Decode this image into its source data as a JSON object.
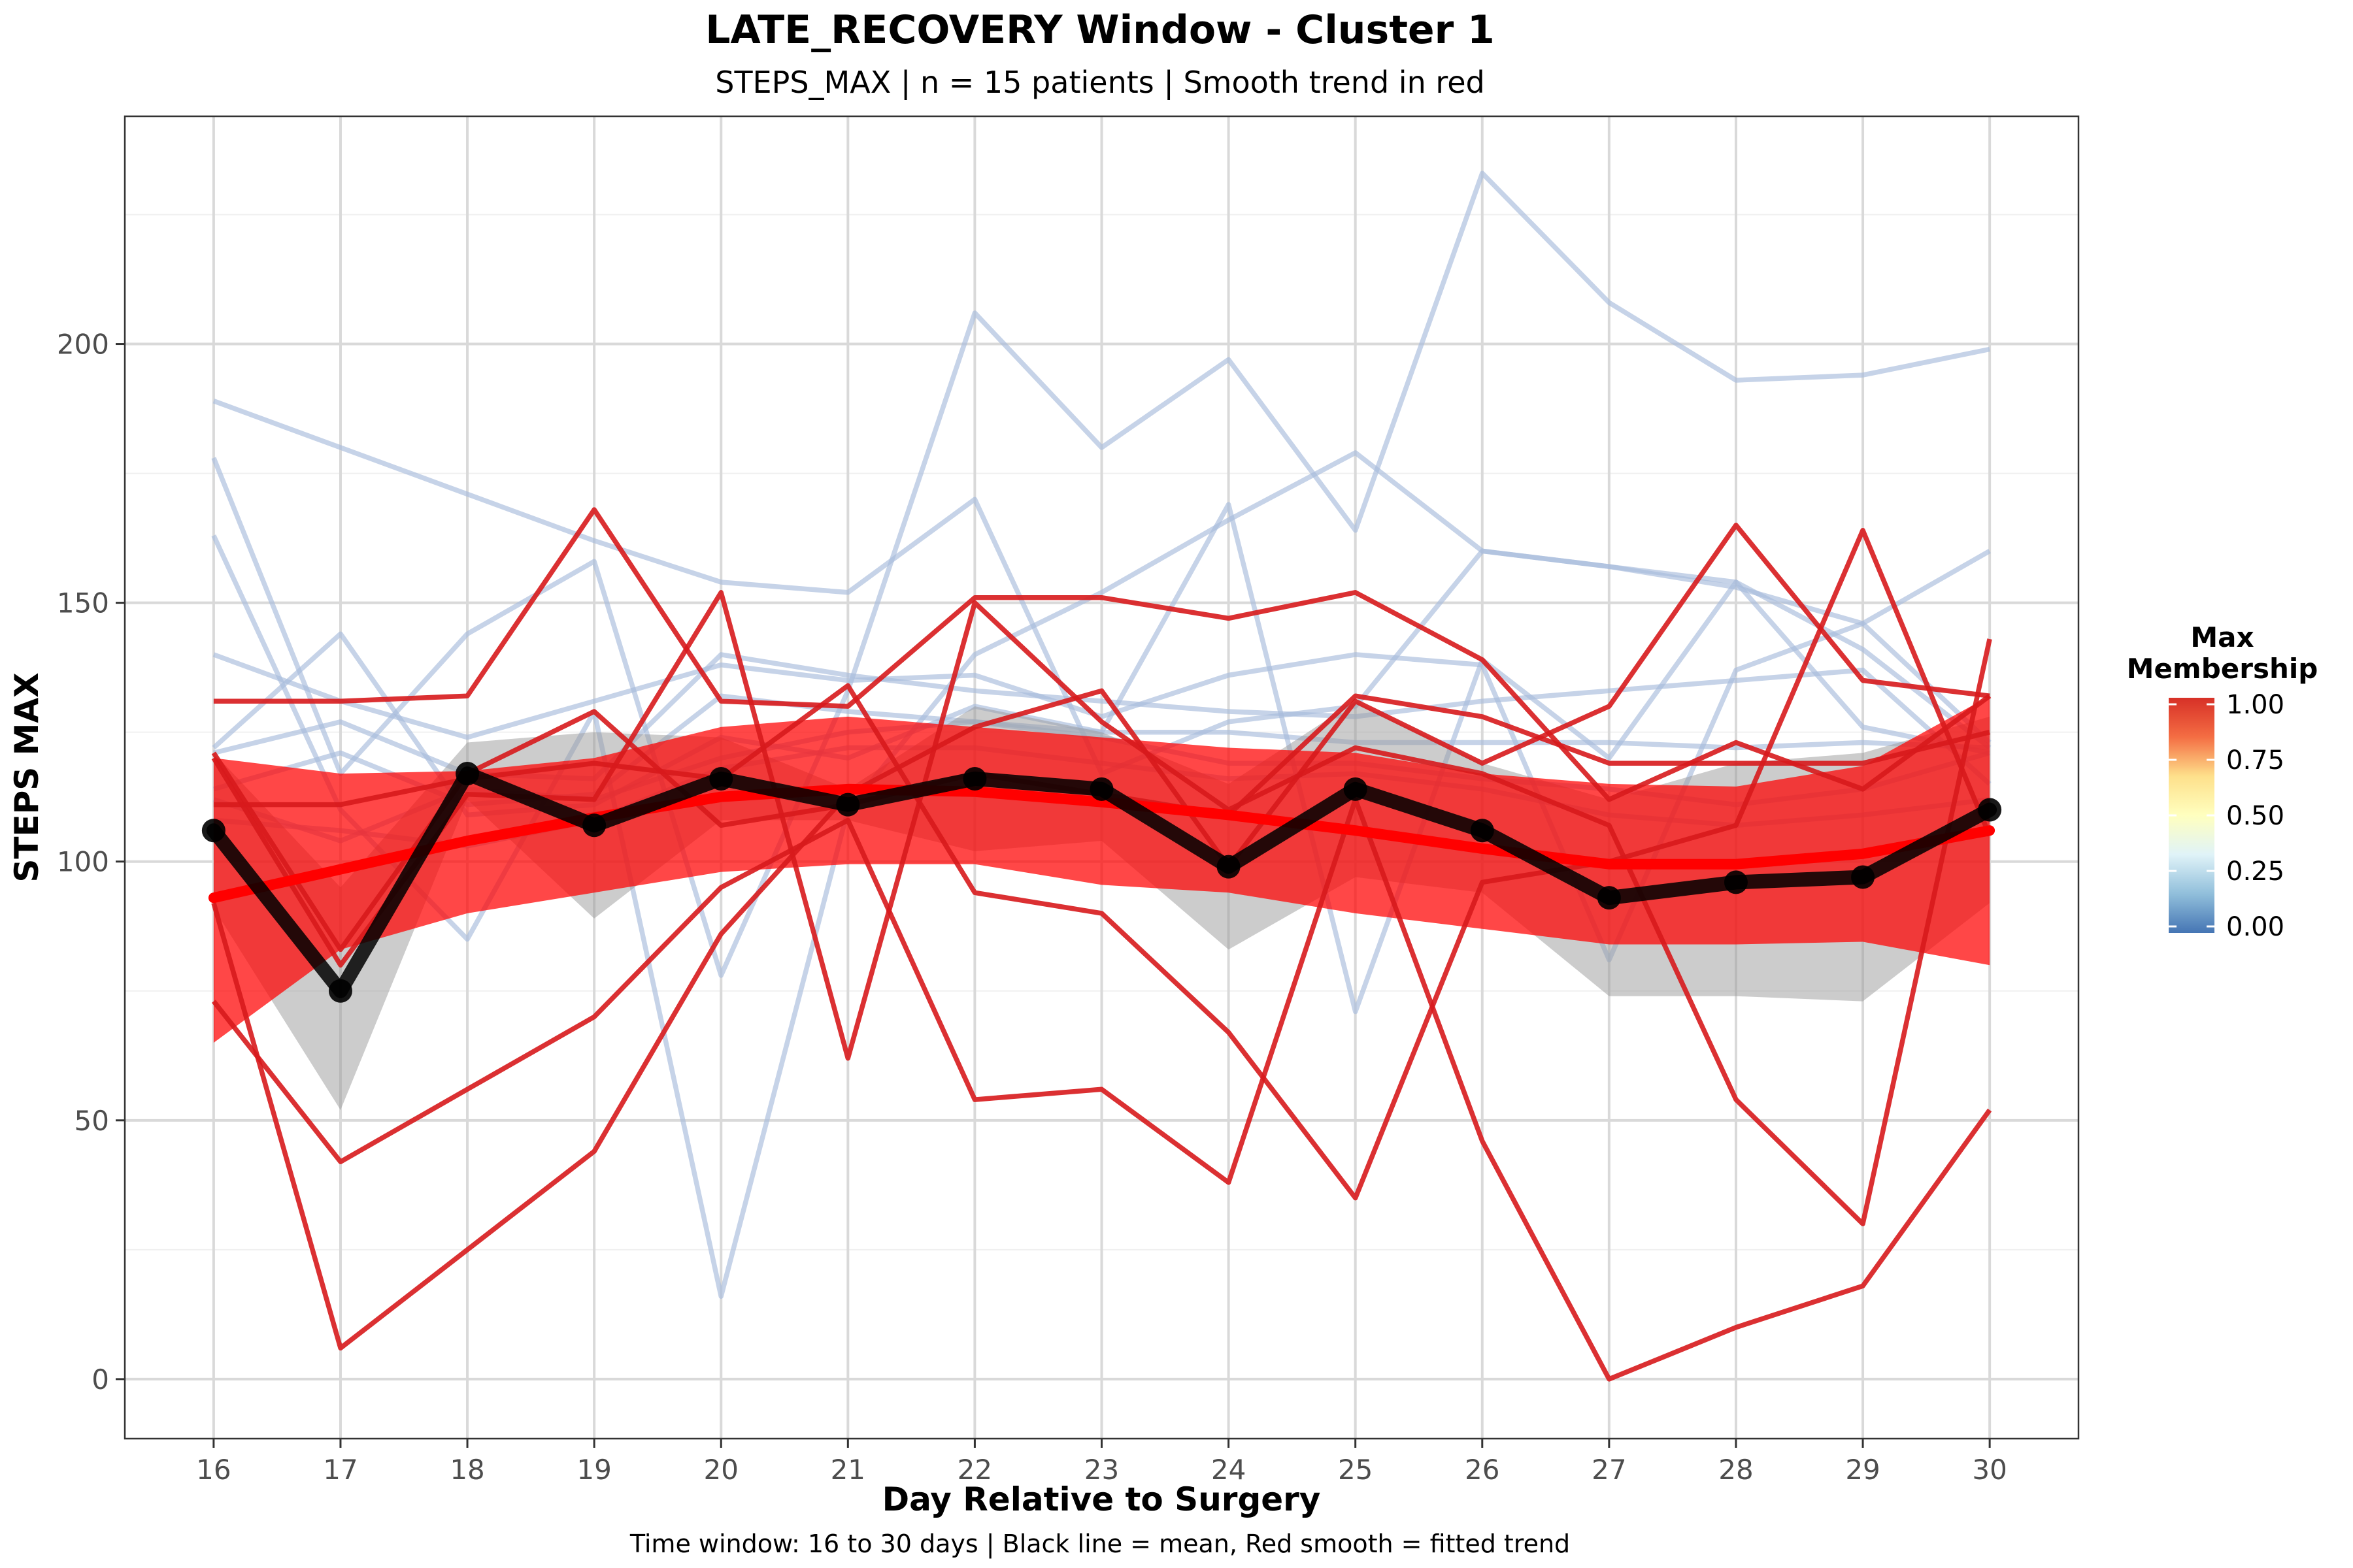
{
  "chart_data": {
    "type": "line",
    "title": "LATE_RECOVERY Window - Cluster 1",
    "subtitle": "STEPS_MAX | n = 15 patients | Smooth trend in red",
    "xlabel": "Day Relative to Surgery",
    "ylabel": "STEPS MAX",
    "caption": "Time window: 16 to 30 days | Black line = mean, Red smooth = fitted trend",
    "x": [
      16,
      17,
      18,
      19,
      20,
      21,
      22,
      23,
      24,
      25,
      26,
      27,
      28,
      29,
      30
    ],
    "xlim": [
      15.3,
      30.7
    ],
    "ylim": [
      -11.5,
      244
    ],
    "y_ticks": [
      0,
      50,
      100,
      150,
      200
    ],
    "grid": true,
    "colors": {
      "low_membership": "#a8bcdc",
      "high_membership": "#d7191c",
      "mean": "#000000",
      "smooth": "#ff0000",
      "mean_band": "#999999",
      "smooth_band": "#ff0000",
      "grid": "#d9d9d9",
      "panel_border": "#333333"
    },
    "legend": {
      "title": "Max\nMembership",
      "position": "right",
      "ticks": [
        "1.00",
        "0.75",
        "0.50",
        "0.25",
        "0.00"
      ],
      "gradient_stops": [
        "#d73027",
        "#f46d43",
        "#fee08b",
        "#ffffbf",
        "#e0f3f8",
        "#91bfdb",
        "#4575b4"
      ]
    },
    "series": [
      {
        "group": "high",
        "membership": 0.95,
        "values": [
          131,
          131,
          132,
          168,
          131,
          130,
          151,
          151,
          147,
          152,
          139,
          112,
          123,
          114,
          132
        ]
      },
      {
        "group": "high",
        "membership": 0.95,
        "values": [
          111,
          111,
          116,
          119,
          116,
          134,
          94,
          90,
          67,
          35,
          96,
          100,
          107,
          164,
          105
        ]
      },
      {
        "group": "high",
        "membership": 0.95,
        "values": [
          121,
          83,
          117,
          129,
          107,
          111,
          117,
          113,
          109,
          132,
          128,
          119,
          119,
          119,
          125
        ]
      },
      {
        "group": "high",
        "membership": 0.95,
        "values": [
          73,
          42,
          56,
          70,
          95,
          108,
          54,
          56,
          38,
          112,
          46,
          0,
          10,
          18,
          52
        ]
      },
      {
        "group": "high",
        "membership": 0.95,
        "values": [
          92,
          6,
          25,
          44,
          86,
          113,
          126,
          133,
          99,
          131,
          119,
          130,
          165,
          135,
          132
        ]
      },
      {
        "group": "high",
        "membership": 0.95,
        "values": [
          120,
          80,
          113,
          112,
          152,
          62,
          150,
          127,
          110,
          122,
          117,
          107,
          54,
          30,
          143
        ]
      },
      {
        "group": "low",
        "membership": 0.25,
        "values": [
          189,
          180,
          171,
          162,
          154,
          152,
          170,
          117,
          127,
          130,
          160,
          157,
          154,
          141,
          122
        ]
      },
      {
        "group": "low",
        "membership": 0.25,
        "values": [
          178,
          117,
          144,
          158,
          78,
          133,
          206,
          180,
          197,
          164,
          233,
          208,
          193,
          194,
          199
        ]
      },
      {
        "group": "low",
        "membership": 0.25,
        "values": [
          163,
          110,
          85,
          129,
          16,
          110,
          140,
          152,
          166,
          179,
          160,
          157,
          153,
          146,
          160
        ]
      },
      {
        "group": "low",
        "membership": 0.25,
        "values": [
          140,
          131,
          124,
          131,
          138,
          135,
          136,
          128,
          136,
          140,
          138,
          81,
          137,
          146,
          123
        ]
      },
      {
        "group": "low",
        "membership": 0.25,
        "values": [
          122,
          144,
          109,
          111,
          124,
          120,
          130,
          125,
          169,
          71,
          139,
          120,
          154,
          126,
          121
        ]
      },
      {
        "group": "low",
        "membership": 0.25,
        "values": [
          121,
          127,
          117,
          116,
          140,
          136,
          133,
          131,
          129,
          128,
          131,
          133,
          135,
          137,
          115
        ]
      },
      {
        "group": "low",
        "membership": 0.25,
        "values": [
          114,
          121,
          111,
          113,
          132,
          129,
          127,
          125,
          125,
          123,
          123,
          123,
          122,
          123,
          122
        ]
      },
      {
        "group": "low",
        "membership": 0.25,
        "values": [
          112,
          104,
          114,
          112,
          120,
          125,
          127,
          124,
          119,
          119,
          116,
          114,
          111,
          114,
          121
        ]
      },
      {
        "group": "low",
        "membership": 0.25,
        "values": [
          108,
          106,
          103,
          108,
          118,
          122,
          122,
          119,
          116,
          117,
          114,
          109,
          107,
          109,
          112
        ]
      }
    ],
    "mean": [
      106,
      75,
      117,
      107,
      116,
      111,
      116,
      114,
      99,
      114,
      106,
      93,
      96,
      97,
      110
    ],
    "mean_band_upper": [
      121,
      95,
      123,
      125,
      124,
      114,
      130,
      125,
      115,
      131,
      119,
      112,
      119,
      121,
      128
    ],
    "mean_band_lower": [
      91,
      52,
      112,
      89,
      108,
      108,
      102,
      104,
      83,
      97,
      94,
      74,
      74,
      73,
      92
    ],
    "smooth": [
      93,
      98.5,
      104,
      108.5,
      112.5,
      114,
      113.5,
      111.5,
      109,
      106,
      102.5,
      99.5,
      99.5,
      101.5,
      106
    ],
    "smooth_upper": [
      120,
      117,
      117.5,
      120,
      126,
      128,
      126,
      124,
      122,
      121,
      117,
      115,
      114.5,
      118.5,
      132
    ],
    "smooth_lower": [
      65,
      83,
      90,
      94,
      98,
      99.5,
      99.5,
      95.5,
      94,
      90,
      87,
      84,
      84,
      84.5,
      80
    ]
  }
}
